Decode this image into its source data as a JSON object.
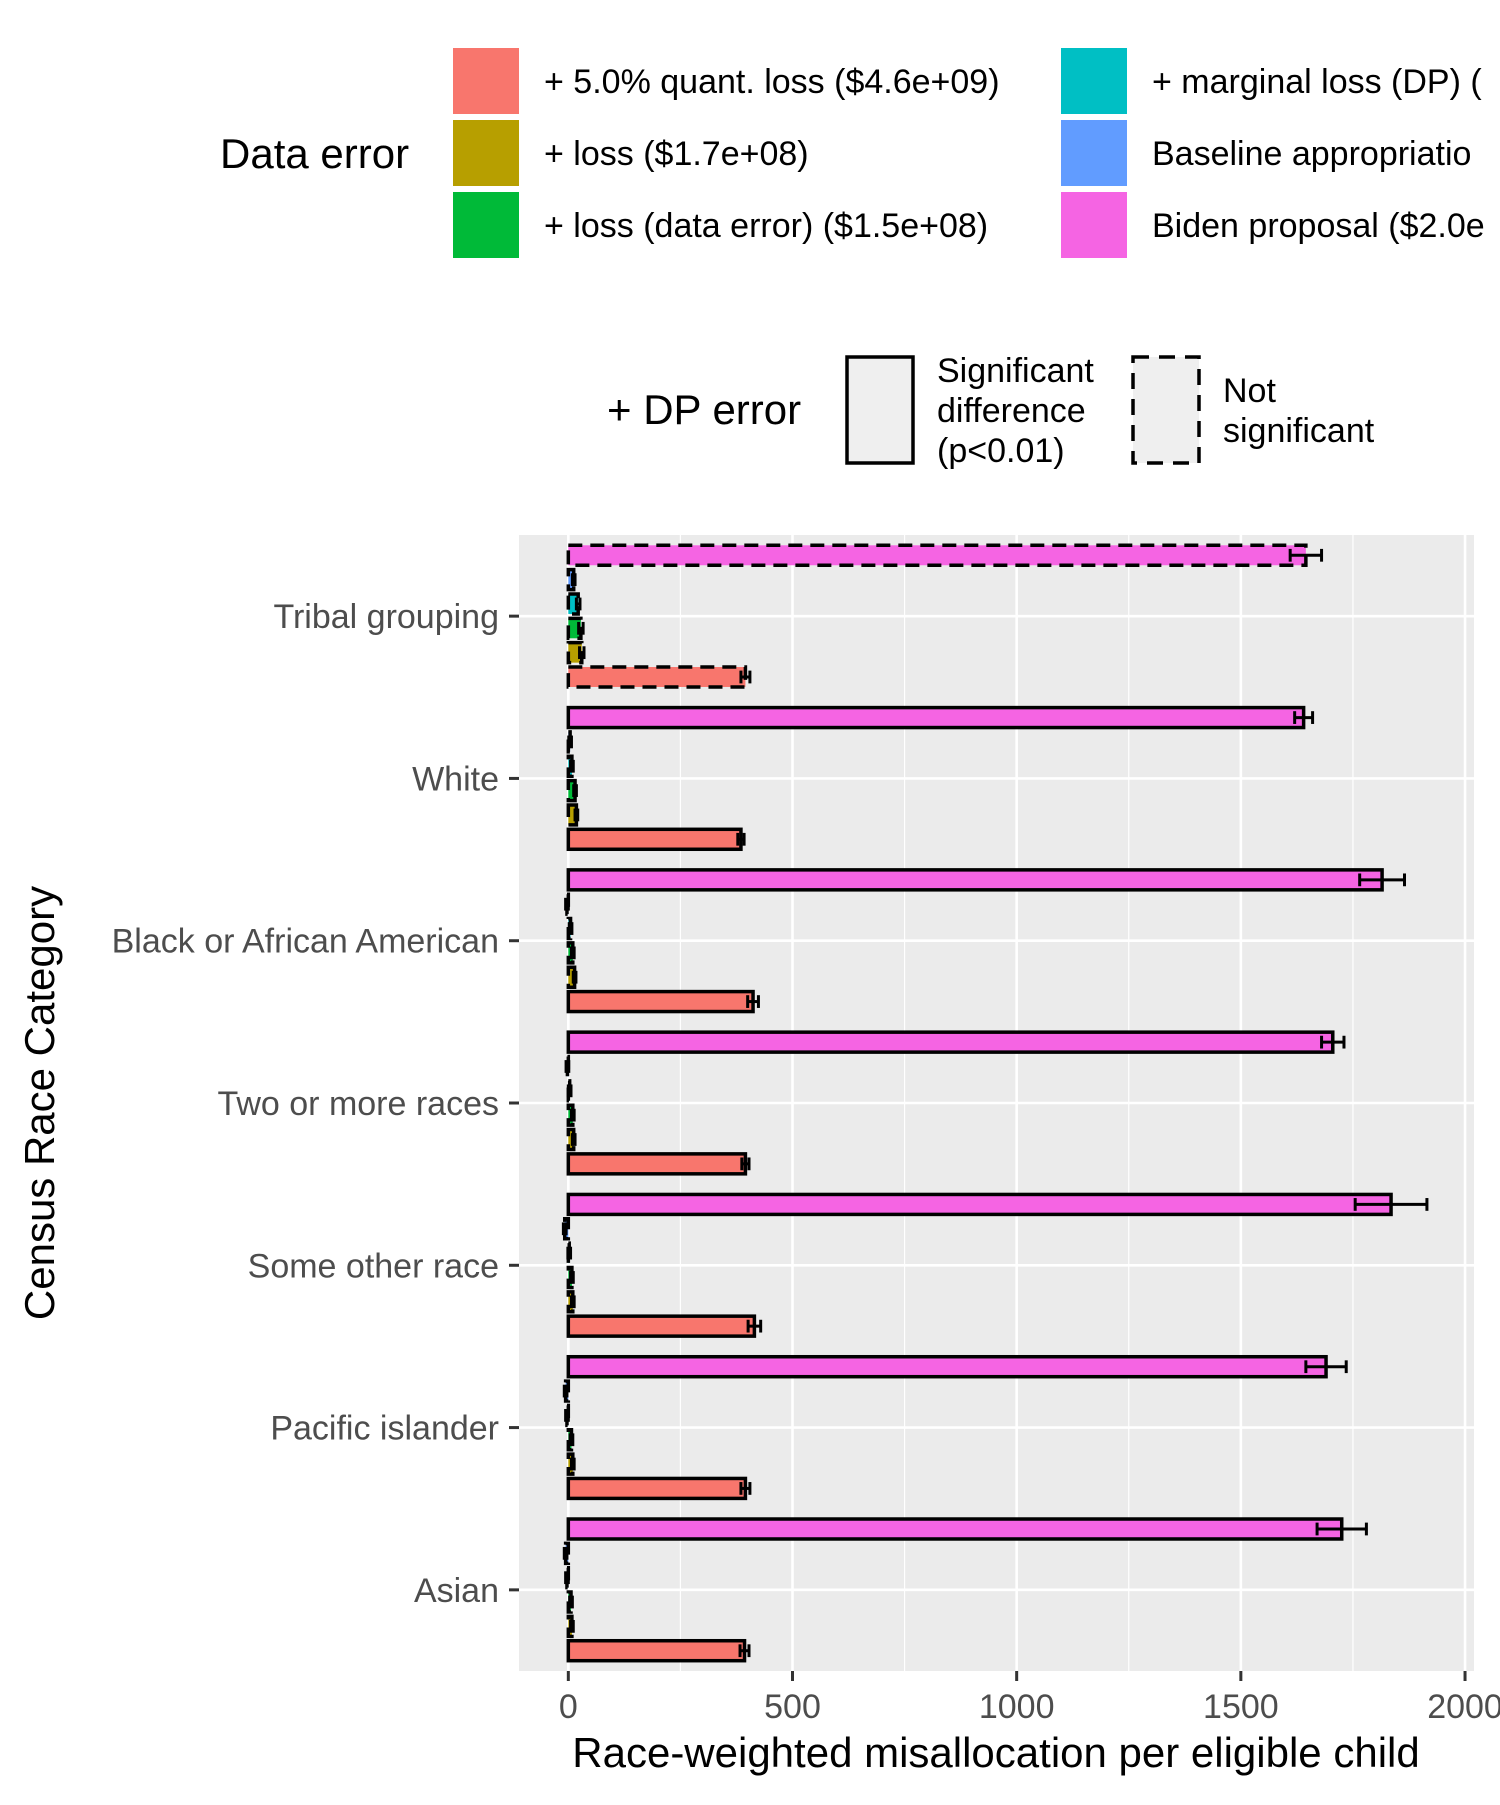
{
  "chart_data": {
    "type": "bar",
    "orientation": "horizontal",
    "title": "",
    "xlabel": "Race-weighted misallocation per eligible child",
    "ylabel": "Census Race Category",
    "xlim": [
      -110,
      2020
    ],
    "x_ticks": [
      0,
      500,
      1000,
      1500,
      2000
    ],
    "x_tick_labels": [
      "0",
      "500",
      "1000",
      "1500",
      "2000"
    ],
    "grid": true,
    "legend_position": "top",
    "categories": [
      "Tribal grouping",
      "White",
      "Black or African American",
      "Two or more races",
      "Some other race",
      "Pacific islander",
      "Asian"
    ],
    "fill_legend": {
      "title": "Data error",
      "entries": [
        {
          "label": "+ 5.0% quant. loss ($4.6e+09)",
          "color": "#F8766D"
        },
        {
          "label": "+ loss ($1.7e+08)",
          "color": "#B79F00"
        },
        {
          "label": "+ loss (data error) ($1.5e+08)",
          "color": "#00BA38"
        },
        {
          "label": "+ marginal loss (DP) (",
          "color": "#00BFC4"
        },
        {
          "label": "Baseline appropriatio",
          "color": "#619CFF"
        },
        {
          "label": "Biden proposal ($2.0e",
          "color": "#F564E3"
        }
      ]
    },
    "linetype_legend": {
      "title": "+ DP error",
      "entries": [
        {
          "label_lines": [
            "Significant",
            "difference",
            "(p<0.01)"
          ],
          "linetype": "solid"
        },
        {
          "label_lines": [
            "Not",
            "significant"
          ],
          "linetype": "dashed"
        }
      ]
    },
    "series": [
      {
        "color": "#F8766D",
        "values": [
          395,
          385,
          412,
          395,
          415,
          395,
          393
        ],
        "errors": [
          10,
          7,
          12,
          8,
          14,
          10,
          10
        ],
        "dashed": [
          true,
          false,
          false,
          false,
          false,
          false,
          false
        ]
      },
      {
        "color": "#B79F00",
        "values": [
          30,
          18,
          14,
          12,
          10,
          10,
          8
        ],
        "errors": [
          5,
          3,
          3,
          3,
          3,
          3,
          3
        ],
        "dashed": [
          true,
          true,
          true,
          true,
          true,
          true,
          true
        ]
      },
      {
        "color": "#00BA38",
        "values": [
          28,
          15,
          10,
          10,
          8,
          7,
          6
        ],
        "errors": [
          5,
          3,
          3,
          3,
          3,
          3,
          3
        ],
        "dashed": [
          true,
          true,
          true,
          true,
          true,
          true,
          true
        ]
      },
      {
        "color": "#00BFC4",
        "values": [
          22,
          8,
          5,
          3,
          2,
          -3,
          -3
        ],
        "errors": [
          4,
          3,
          3,
          3,
          3,
          3,
          3
        ],
        "dashed": [
          true,
          true,
          true,
          true,
          true,
          true,
          true
        ]
      },
      {
        "color": "#619CFF",
        "values": [
          12,
          4,
          -3,
          -2,
          -8,
          -6,
          -6
        ],
        "errors": [
          3,
          3,
          3,
          3,
          3,
          3,
          3
        ],
        "dashed": [
          true,
          true,
          true,
          true,
          true,
          true,
          true
        ]
      },
      {
        "color": "#F564E3",
        "values": [
          1645,
          1640,
          1815,
          1705,
          1835,
          1690,
          1725
        ],
        "errors": [
          35,
          20,
          50,
          25,
          80,
          45,
          55
        ],
        "dashed": [
          true,
          false,
          false,
          false,
          false,
          false,
          false
        ]
      }
    ]
  }
}
